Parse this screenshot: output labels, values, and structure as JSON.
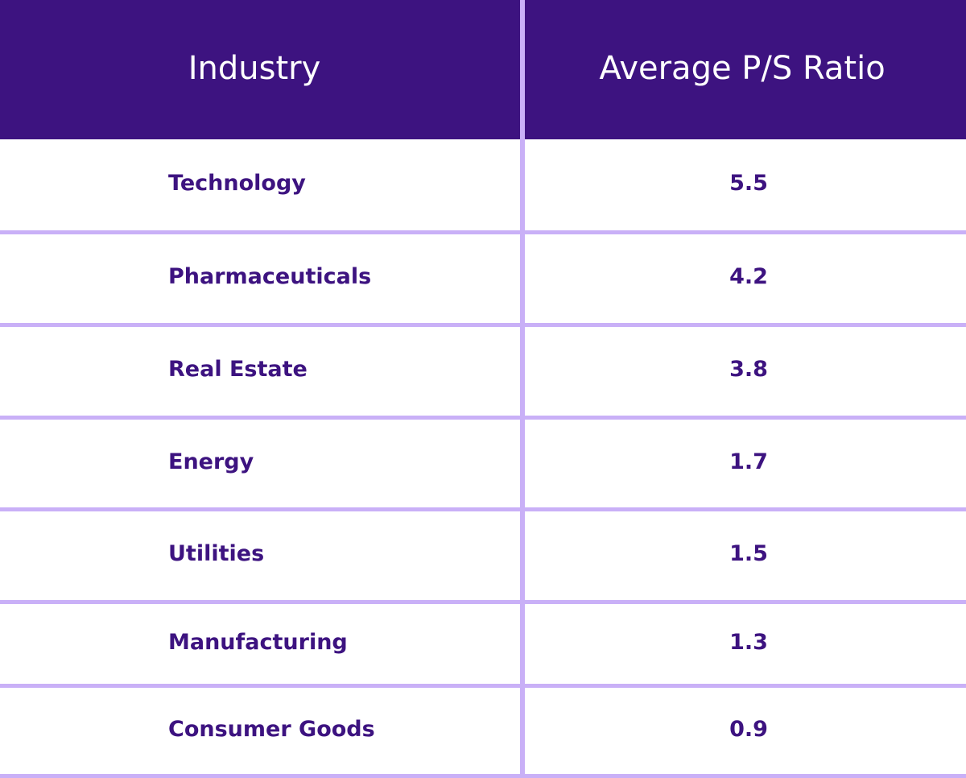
{
  "chart_data": {
    "type": "table",
    "columns": [
      "Industry",
      "Average P/S Ratio"
    ],
    "rows": [
      {
        "industry": "Technology",
        "value": "5.5"
      },
      {
        "industry": "Pharmaceuticals",
        "value": "4.2"
      },
      {
        "industry": "Real Estate",
        "value": "3.8"
      },
      {
        "industry": "Energy",
        "value": "1.7"
      },
      {
        "industry": "Utilities",
        "value": "1.5"
      },
      {
        "industry": "Manufacturing",
        "value": "1.3"
      },
      {
        "industry": "Consumer Goods",
        "value": "0.9"
      }
    ],
    "colors": {
      "header_bg": "#3d1380",
      "header_text": "#ffffff",
      "body_text": "#3d1380",
      "grid": "#c9b0f7"
    }
  }
}
